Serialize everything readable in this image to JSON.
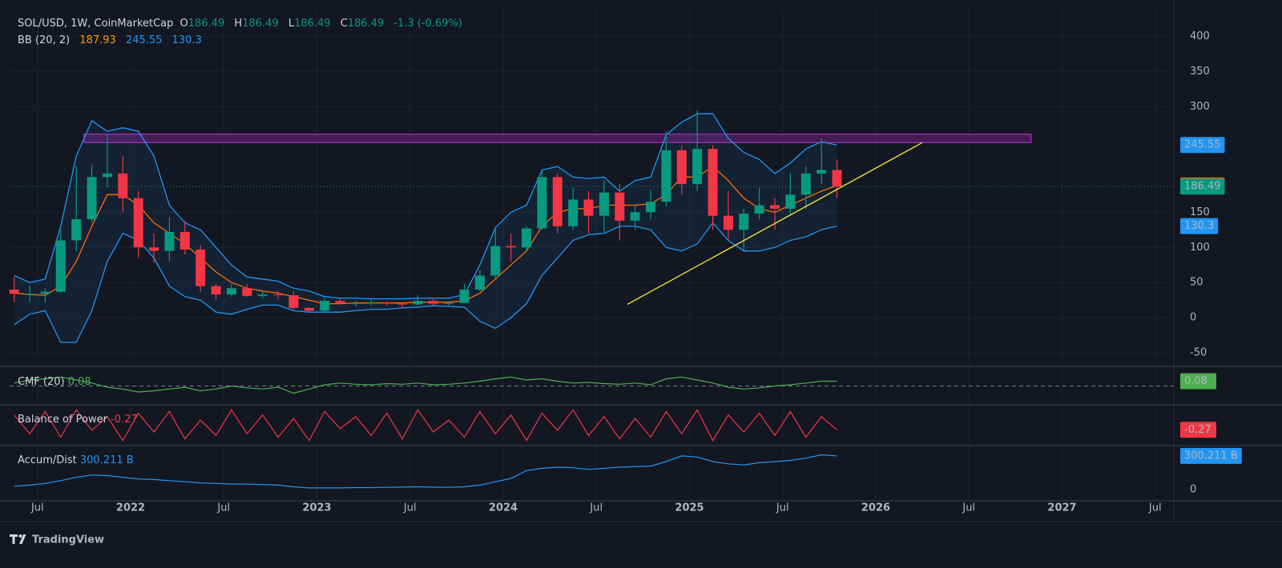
{
  "header": {
    "symbol": "SOL/USD, 1W, CoinMarketCap",
    "o_label": "O",
    "o": 186.49,
    "h_label": "H",
    "h": 186.49,
    "l_label": "L",
    "l": 186.49,
    "c_label": "C",
    "c": 186.49,
    "change": -1.3,
    "change_pct": "(-0.69%)"
  },
  "footer": {
    "brand": "TradingView"
  },
  "chart_data": [
    {
      "type": "candlestick",
      "indicator_label": "BB (20, 2)",
      "x": [
        "2021-05",
        "2021-06",
        "2021-07",
        "2021-08",
        "2021-09",
        "2021-10",
        "2021-11",
        "2021-12",
        "2022-01",
        "2022-02",
        "2022-03",
        "2022-04",
        "2022-05",
        "2022-06",
        "2022-07",
        "2022-08",
        "2022-09",
        "2022-10",
        "2022-11",
        "2022-12",
        "2023-01",
        "2023-02",
        "2023-03",
        "2023-04",
        "2023-05",
        "2023-06",
        "2023-07",
        "2023-08",
        "2023-09",
        "2023-10",
        "2023-11",
        "2023-12",
        "2024-01",
        "2024-02",
        "2024-03",
        "2024-04",
        "2024-05",
        "2024-06",
        "2024-07",
        "2024-08",
        "2024-09",
        "2024-10",
        "2024-11",
        "2024-12",
        "2025-01",
        "2025-02",
        "2025-03",
        "2025-04",
        "2025-05",
        "2025-06",
        "2025-07",
        "2025-08",
        "2025-09",
        "2025-10"
      ],
      "open": [
        40,
        34,
        34,
        37,
        110,
        140,
        200,
        205,
        170,
        100,
        95,
        122,
        97,
        45,
        33,
        42,
        31,
        33,
        32,
        14,
        10,
        24,
        21,
        21,
        22,
        20,
        19,
        24,
        20,
        21,
        40,
        60,
        102,
        100,
        127,
        200,
        130,
        168,
        145,
        178,
        138,
        150,
        165,
        238,
        190,
        240,
        145,
        125,
        148,
        160,
        155,
        175,
        205,
        210
      ],
      "high": [
        58,
        45,
        42,
        125,
        215,
        218,
        260,
        230,
        180,
        120,
        143,
        138,
        103,
        48,
        48,
        48,
        38,
        38,
        38,
        15,
        28,
        27,
        24,
        26,
        23,
        20,
        32,
        27,
        22,
        48,
        68,
        126,
        120,
        130,
        210,
        205,
        185,
        180,
        195,
        190,
        160,
        182,
        265,
        245,
        295,
        245,
        180,
        155,
        185,
        170,
        205,
        215,
        255,
        225
      ],
      "low": [
        22,
        22,
        22,
        35,
        95,
        135,
        185,
        150,
        85,
        78,
        80,
        90,
        37,
        26,
        30,
        30,
        28,
        26,
        12,
        8,
        8,
        19,
        16,
        18,
        18,
        13,
        18,
        17,
        17,
        21,
        38,
        55,
        80,
        95,
        125,
        120,
        125,
        120,
        122,
        110,
        125,
        140,
        158,
        175,
        180,
        125,
        112,
        95,
        140,
        125,
        145,
        155,
        190,
        170
      ],
      "close": [
        34,
        34,
        37,
        110,
        140,
        200,
        205,
        170,
        100,
        95,
        122,
        97,
        45,
        33,
        42,
        31,
        33,
        32,
        14,
        10,
        24,
        21,
        21,
        22,
        20,
        19,
        24,
        20,
        21,
        40,
        60,
        102,
        100,
        127,
        200,
        130,
        168,
        145,
        178,
        138,
        150,
        165,
        238,
        190,
        240,
        145,
        125,
        148,
        160,
        155,
        175,
        205,
        210,
        186.49
      ],
      "up_color": "#089981",
      "down_color": "#f23645",
      "series": [
        {
          "color": "#2196f3",
          "values": [
            60,
            50,
            55,
            130,
            230,
            280,
            265,
            270,
            265,
            230,
            160,
            135,
            125,
            100,
            75,
            58,
            55,
            52,
            42,
            38,
            30,
            28,
            28,
            27,
            27,
            27,
            28,
            28,
            28,
            33,
            75,
            128,
            150,
            160,
            210,
            215,
            200,
            198,
            200,
            180,
            195,
            200,
            260,
            278,
            290,
            290,
            255,
            235,
            225,
            205,
            220,
            240,
            250,
            245.55
          ]
        },
        {
          "color": "#ff6d00",
          "values": [
            35,
            33,
            32,
            45,
            80,
            130,
            175,
            175,
            160,
            135,
            120,
            105,
            85,
            65,
            50,
            42,
            38,
            35,
            30,
            25,
            20,
            20,
            21,
            21,
            21,
            21,
            22,
            22,
            22,
            24,
            35,
            55,
            75,
            95,
            130,
            150,
            155,
            155,
            160,
            160,
            160,
            162,
            175,
            200,
            200,
            215,
            195,
            170,
            155,
            150,
            160,
            170,
            180,
            187.93
          ]
        },
        {
          "color": "#2196f3",
          "values": [
            -10,
            5,
            10,
            -35,
            -35,
            10,
            80,
            120,
            110,
            85,
            45,
            30,
            25,
            8,
            5,
            12,
            18,
            18,
            10,
            8,
            8,
            8,
            10,
            12,
            12,
            14,
            15,
            17,
            16,
            15,
            -5,
            -15,
            0,
            20,
            60,
            85,
            110,
            118,
            120,
            130,
            130,
            125,
            100,
            95,
            105,
            135,
            110,
            95,
            95,
            100,
            110,
            115,
            125,
            130.3
          ]
        }
      ],
      "band_fill": "#2196f3",
      "resistance_zone": {
        "x": [
          "2021-10",
          "2026-11"
        ],
        "y": [
          249,
          261
        ],
        "color": "#9c27b0"
      },
      "trendline": {
        "x": [
          "2024-09",
          "2026-04"
        ],
        "y": [
          19,
          249
        ],
        "color": "#ffeb3b"
      },
      "ylim": [
        -68,
        438
      ],
      "yticks": [
        -50,
        0,
        50,
        100,
        150,
        300,
        350,
        400
      ],
      "grid": true,
      "xticks": [
        {
          "value": "2021-07",
          "label": "Jul"
        },
        {
          "value": "2022-01",
          "label": "2022"
        },
        {
          "value": "2022-07",
          "label": "Jul"
        },
        {
          "value": "2023-01",
          "label": "2023"
        },
        {
          "value": "2023-07",
          "label": "Jul"
        },
        {
          "value": "2024-01",
          "label": "2024"
        },
        {
          "value": "2024-07",
          "label": "Jul"
        },
        {
          "value": "2025-01",
          "label": "2025"
        },
        {
          "value": "2025-07",
          "label": "Jul"
        },
        {
          "value": "2026-01",
          "label": "2026"
        },
        {
          "value": "2026-07",
          "label": "Jul"
        },
        {
          "value": "2027-01",
          "label": "2027"
        },
        {
          "value": "2027-07",
          "label": "Jul"
        }
      ]
    },
    {
      "type": "line",
      "label": "CMF (20)",
      "color": "#4caf50",
      "tag_color": "#4caf50",
      "hline": 0,
      "ylim": [
        -0.3,
        0.3
      ],
      "values": [
        0.05,
        0.1,
        0.12,
        0.15,
        0.1,
        0.05,
        -0.02,
        -0.05,
        -0.1,
        -0.08,
        -0.05,
        -0.02,
        -0.08,
        -0.05,
        0,
        -0.03,
        -0.05,
        -0.02,
        -0.12,
        -0.05,
        0.02,
        0.05,
        0.03,
        0.02,
        0.04,
        0.03,
        0.05,
        0.02,
        0.03,
        0.05,
        0.08,
        0.12,
        0.15,
        0.1,
        0.12,
        0.08,
        0.05,
        0.06,
        0.04,
        0.03,
        0.05,
        0.02,
        0.12,
        0.15,
        0.1,
        0.05,
        -0.02,
        -0.05,
        -0.03,
        0,
        0.02,
        0.05,
        0.08,
        0.08
      ]
    },
    {
      "type": "line",
      "label": "Balance of Power",
      "color": "#f23645",
      "tag_color": "#f23645",
      "ylim": [
        -1.1,
        1.1
      ],
      "values": [
        0.6,
        -0.5,
        0.8,
        -0.7,
        0.9,
        -0.3,
        0.5,
        -0.9,
        0.7,
        -0.4,
        0.8,
        -0.8,
        0.3,
        -0.6,
        0.9,
        -0.5,
        0.6,
        -0.7,
        0.4,
        -0.9,
        0.8,
        -0.2,
        0.5,
        -0.6,
        0.7,
        -0.8,
        0.9,
        -0.4,
        0.3,
        -0.7,
        0.8,
        -0.5,
        0.6,
        -0.9,
        0.7,
        -0.3,
        0.9,
        -0.6,
        0.5,
        -0.8,
        0.4,
        -0.7,
        0.8,
        -0.5,
        0.9,
        -0.9,
        0.6,
        -0.4,
        0.7,
        -0.6,
        0.8,
        -0.7,
        0.5,
        -0.27
      ]
    },
    {
      "type": "line",
      "label": "Accum/Dist",
      "last_label": "300.211 B",
      "color": "#2196f3",
      "tag_color": "#2196f3",
      "ylim": [
        -93,
        371
      ],
      "yticks": [
        0
      ],
      "values": [
        30,
        40,
        55,
        80,
        110,
        130,
        125,
        110,
        95,
        90,
        80,
        70,
        60,
        55,
        50,
        48,
        45,
        40,
        25,
        15,
        15,
        15,
        18,
        18,
        20,
        22,
        25,
        22,
        20,
        25,
        40,
        70,
        100,
        170,
        190,
        200,
        195,
        180,
        190,
        200,
        205,
        210,
        250,
        300,
        290,
        250,
        230,
        220,
        240,
        250,
        260,
        280,
        310,
        300.211
      ]
    }
  ]
}
